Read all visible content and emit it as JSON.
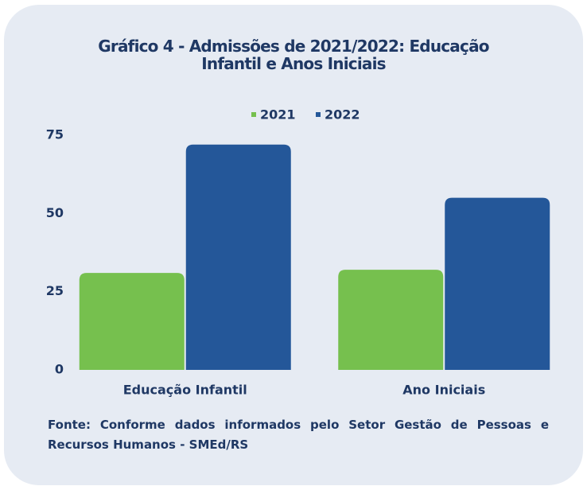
{
  "chart_data": {
    "type": "bar",
    "title": "Gráfico 4 - Admissões de 2021/2022: Educação Infantil e Anos Iniciais",
    "categories": [
      "Educação Infantil",
      "Ano Iniciais"
    ],
    "series": [
      {
        "name": "2021",
        "color": "#76c04e",
        "values": [
          31,
          32
        ]
      },
      {
        "name": "2022",
        "color": "#245799",
        "values": [
          72,
          55
        ]
      }
    ],
    "ylim": [
      0,
      75
    ],
    "yticks": [
      0,
      25,
      50,
      75
    ],
    "grid": false,
    "legend": "top",
    "source": "Fonte: Conforme dados informados pelo Setor Gestão de Pessoas e Recursos Humanos - SMEd/RS"
  }
}
